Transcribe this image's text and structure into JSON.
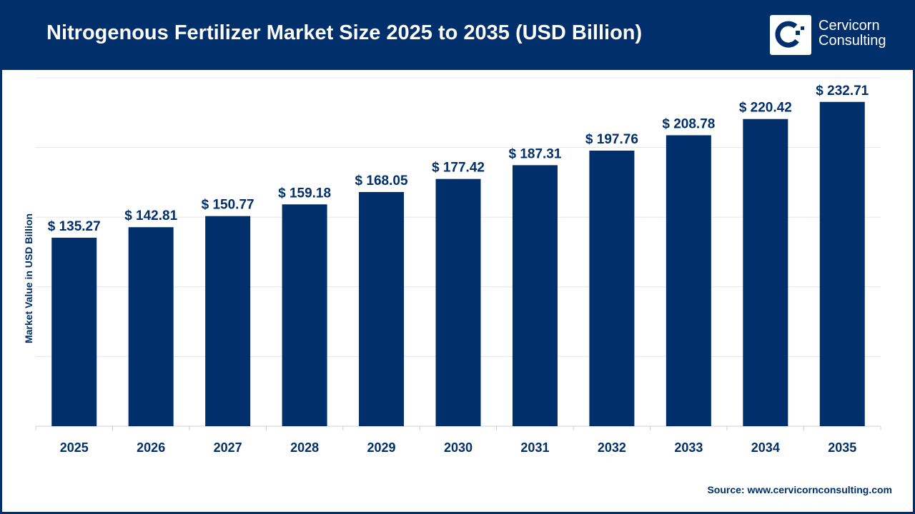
{
  "header": {
    "title": "Nitrogenous Fertilizer Market Size 2025 to 2035 (USD Billion)",
    "logo_line1": "Cervicorn",
    "logo_line2": "Consulting"
  },
  "source": "Source: www.cervicornconsulting.com",
  "colors": {
    "bar": "#002f6c",
    "header": "#002f6c",
    "grid": "#e6e6e6"
  },
  "chart_data": {
    "type": "bar",
    "title": "Nitrogenous Fertilizer Market Size 2025 to 2035 (USD Billion)",
    "xlabel": "",
    "ylabel": "Market Value in USD Billion",
    "ylim": [
      0,
      250
    ],
    "grid": true,
    "categories": [
      "2025",
      "2026",
      "2027",
      "2028",
      "2029",
      "2030",
      "2031",
      "2032",
      "2033",
      "2034",
      "2035"
    ],
    "values": [
      135.27,
      142.81,
      150.77,
      159.18,
      168.05,
      177.42,
      187.31,
      197.76,
      208.78,
      220.42,
      232.71
    ],
    "data_labels": [
      "$ 135.27",
      "$ 142.81",
      "$ 150.77",
      "$ 159.18",
      "$ 168.05",
      "$ 177.42",
      "$ 187.31",
      "$ 197.76",
      "$ 208.78",
      "$ 220.42",
      "$ 232.71"
    ]
  }
}
